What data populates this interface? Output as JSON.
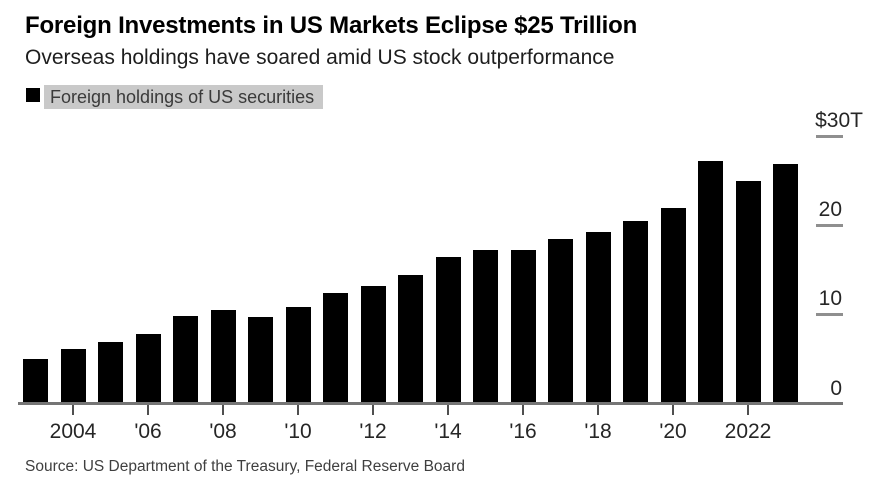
{
  "header": {
    "title": "Foreign Investments in US Markets Eclipse $25 Trillion",
    "subtitle": "Overseas holdings have soared amid US stock outperformance"
  },
  "legend": {
    "marker": "black-square",
    "label": "Foreign holdings of US securities"
  },
  "source": "Source: US Department of the Treasury, Federal Reserve Board",
  "colors": {
    "bar": "#000000",
    "legend_highlight": "#c9c9c9",
    "axis_line": "#757575",
    "y_tick_dash": "#8f8f8f",
    "x_tick": "#4f4f4f",
    "text": "#262626"
  },
  "chart_data": {
    "type": "bar",
    "title": "Foreign Investments in US Markets Eclipse $25 Trillion",
    "subtitle": "Overseas holdings have soared amid US stock outperformance",
    "series_name": "Foreign holdings of US securities",
    "unit": "USD trillions",
    "x": [
      2003,
      2004,
      2005,
      2006,
      2007,
      2008,
      2009,
      2010,
      2011,
      2012,
      2013,
      2014,
      2015,
      2016,
      2017,
      2018,
      2019,
      2020,
      2021,
      2022,
      2023
    ],
    "values": [
      5.0,
      6.1,
      6.9,
      7.8,
      9.8,
      10.4,
      9.7,
      10.8,
      12.4,
      13.2,
      14.4,
      16.4,
      17.2,
      17.2,
      18.4,
      19.2,
      20.4,
      21.9,
      27.2,
      24.9,
      26.8
    ],
    "x_ticks": [
      {
        "year": 2004,
        "label": "2004"
      },
      {
        "year": 2006,
        "label": "'06"
      },
      {
        "year": 2008,
        "label": "'08"
      },
      {
        "year": 2010,
        "label": "'10"
      },
      {
        "year": 2012,
        "label": "'12"
      },
      {
        "year": 2014,
        "label": "'14"
      },
      {
        "year": 2016,
        "label": "'16"
      },
      {
        "year": 2018,
        "label": "'18"
      },
      {
        "year": 2020,
        "label": "'20"
      },
      {
        "year": 2022,
        "label": "2022"
      }
    ],
    "y_axis": {
      "side": "right",
      "min": 0,
      "max": 30,
      "ticks": [
        {
          "value": 0,
          "label": "0",
          "dash": false
        },
        {
          "value": 10,
          "label": "10",
          "dash": true
        },
        {
          "value": 20,
          "label": "20",
          "dash": true
        },
        {
          "value": 30,
          "label": "$30T",
          "dash": true
        }
      ]
    },
    "grid": false,
    "legend_position": "top-left"
  }
}
